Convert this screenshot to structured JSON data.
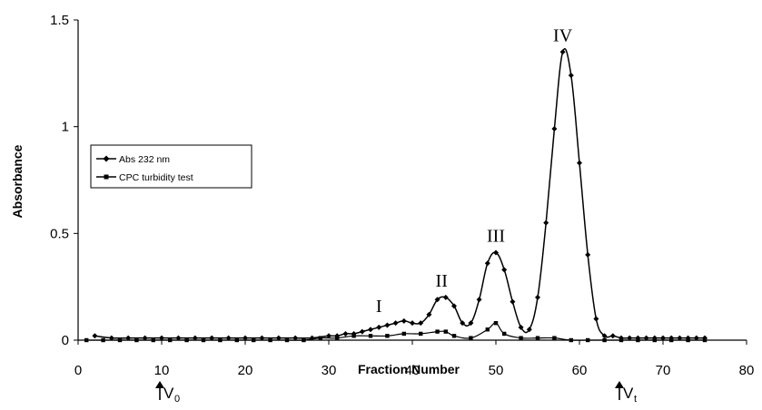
{
  "chart_data": {
    "type": "line",
    "xlabel": "Fraction Number",
    "ylabel": "Absorbance",
    "xlim": [
      0,
      80
    ],
    "ylim": [
      0,
      1.5
    ],
    "xticks": [
      "0",
      "10",
      "20",
      "30",
      "40",
      "50",
      "60",
      "70",
      "80"
    ],
    "yticks": [
      "0",
      "0.5",
      "1",
      "1.5"
    ],
    "legend_position": "left",
    "series": [
      {
        "name": "Abs 232 nm",
        "marker": "diamond",
        "color": "#000000",
        "x": [
          2,
          4,
          6,
          8,
          10,
          12,
          14,
          16,
          18,
          20,
          22,
          24,
          26,
          28,
          30,
          31,
          32,
          33,
          34,
          35,
          36,
          37,
          38,
          39,
          40,
          41,
          42,
          43,
          44,
          45,
          46,
          47,
          48,
          49,
          50,
          51,
          52,
          53,
          54,
          55,
          56,
          57,
          58,
          59,
          60,
          61,
          62,
          63,
          64,
          65,
          66,
          67,
          68,
          69,
          70,
          71,
          72,
          73,
          74,
          75
        ],
        "y": [
          0.02,
          0.01,
          0.01,
          0.01,
          0.01,
          0.01,
          0.01,
          0.01,
          0.01,
          0.01,
          0.01,
          0.01,
          0.01,
          0.01,
          0.02,
          0.02,
          0.03,
          0.03,
          0.04,
          0.05,
          0.06,
          0.07,
          0.08,
          0.09,
          0.08,
          0.08,
          0.12,
          0.19,
          0.2,
          0.16,
          0.08,
          0.08,
          0.19,
          0.36,
          0.41,
          0.33,
          0.18,
          0.06,
          0.05,
          0.2,
          0.55,
          0.99,
          1.35,
          1.24,
          0.83,
          0.4,
          0.1,
          0.02,
          0.02,
          0.01,
          0.01,
          0.01,
          0.01,
          0.01,
          0.01,
          0.01,
          0.01,
          0.01,
          0.01,
          0.01
        ]
      },
      {
        "name": "CPC turbidity test",
        "marker": "square",
        "color": "#000000",
        "x": [
          1,
          3,
          5,
          7,
          9,
          11,
          13,
          15,
          17,
          19,
          21,
          23,
          25,
          27,
          29,
          31,
          33,
          35,
          37,
          39,
          41,
          43,
          44,
          45,
          47,
          49,
          50,
          51,
          53,
          55,
          57,
          59,
          61,
          63,
          65,
          67,
          69,
          71,
          73,
          75
        ],
        "y": [
          0,
          0,
          0,
          0,
          0,
          0,
          0,
          0,
          0,
          0,
          0,
          0,
          0,
          0,
          0.01,
          0.01,
          0.02,
          0.02,
          0.02,
          0.03,
          0.03,
          0.04,
          0.04,
          0.02,
          0.01,
          0.05,
          0.08,
          0.03,
          0.01,
          0.01,
          0.01,
          0,
          0,
          0,
          0,
          0,
          0,
          0,
          0,
          0
        ]
      }
    ],
    "annotations": [
      {
        "text": "I",
        "x": 36,
        "y": 0.08
      },
      {
        "text": "II",
        "x": 43.5,
        "y": 0.2
      },
      {
        "text": "III",
        "x": 50,
        "y": 0.41
      },
      {
        "text": "IV",
        "x": 58,
        "y": 1.35
      }
    ],
    "markers": [
      {
        "label": "V",
        "sub": "0",
        "x": 10
      },
      {
        "label": "V",
        "sub": "t",
        "x": 65
      }
    ]
  }
}
